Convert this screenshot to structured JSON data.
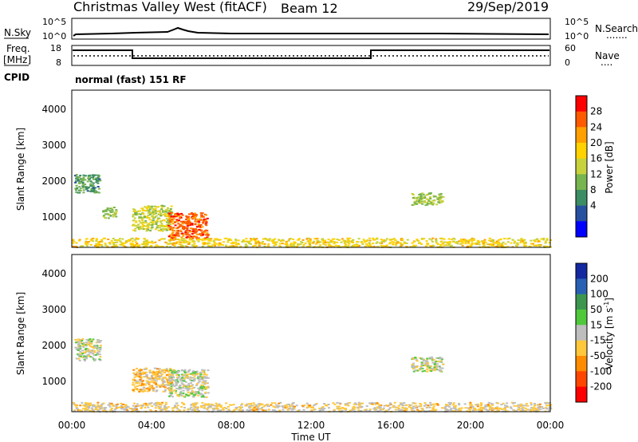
{
  "header": {
    "title": "Christmas Valley West (fitACF)",
    "beam": "Beam 12",
    "date": "29/Sep/2019"
  },
  "panels": {
    "nsky": {
      "label": "N.Sky",
      "ticks_left": [
        "10^5",
        "10^0"
      ],
      "ticks_right": [
        "10^5",
        "10^0"
      ],
      "right_label": "N.Search",
      "right_marker": "......."
    },
    "freq": {
      "label_line1": "Freq.",
      "label_line2": "[MHz]",
      "ticks_left": [
        "18",
        "8"
      ],
      "ticks_right": [
        "60",
        "0"
      ],
      "right_label": "Nave",
      "right_marker": "....",
      "cpid_label": "CPID",
      "cpid_text": "normal (fast) 151 RF"
    }
  },
  "colorbars": {
    "power": {
      "label": "Power [dB]",
      "ticks": [
        "28",
        "24",
        "20",
        "16",
        "12",
        "8",
        "4"
      ],
      "colors": [
        "#ff0000",
        "#ff5a00",
        "#ffa000",
        "#ffd200",
        "#c8d23c",
        "#78b450",
        "#3c8c64",
        "#2850a0",
        "#0000ff"
      ]
    },
    "velocity": {
      "label": "Velocity [m s",
      "label_sup": "-1",
      "label_end": "]",
      "ticks": [
        "200",
        "100",
        "50",
        "15",
        "-15",
        "-50",
        "-100",
        "-200"
      ],
      "colors": [
        "#1428a0",
        "#2860b4",
        "#3c9650",
        "#50c83c",
        "#bebebe",
        "#ffc83c",
        "#ff8c00",
        "#ff4600",
        "#ff0000"
      ]
    }
  },
  "axes": {
    "ylabel": "Slant Range [km]",
    "yticks": [
      "4000",
      "3000",
      "2000",
      "1000"
    ],
    "xticks": [
      "00:00",
      "04:00",
      "08:00",
      "12:00",
      "16:00",
      "20:00",
      "00:00"
    ],
    "xlabel": "Time UT"
  },
  "chart_data": [
    {
      "type": "heatmap",
      "name": "power",
      "x_unit": "hours UT",
      "y_unit": "km",
      "xlim": [
        0,
        24
      ],
      "ylim": [
        180,
        4500
      ],
      "clim": [
        0,
        30
      ],
      "regions": [
        {
          "x": [
            0.1,
            1.4
          ],
          "y": [
            1700,
            2200
          ],
          "v": 9
        },
        {
          "x": [
            1.5,
            2.2
          ],
          "y": [
            1000,
            1300
          ],
          "v": 13
        },
        {
          "x": [
            3.0,
            5.0
          ],
          "y": [
            650,
            1350
          ],
          "v": 15
        },
        {
          "x": [
            4.8,
            6.8
          ],
          "y": [
            450,
            1150
          ],
          "v": 26
        },
        {
          "x": [
            17.0,
            18.6
          ],
          "y": [
            1350,
            1700
          ],
          "v": 13
        },
        {
          "x": [
            0.0,
            24.0
          ],
          "y": [
            200,
            450
          ],
          "v": 18
        }
      ]
    },
    {
      "type": "heatmap",
      "name": "velocity",
      "x_unit": "hours UT",
      "y_unit": "km",
      "xlim": [
        0,
        24
      ],
      "ylim": [
        180,
        4500
      ],
      "clim": [
        -250,
        250
      ],
      "regions": [
        {
          "x": [
            0.1,
            1.4
          ],
          "y": [
            1600,
            2200
          ],
          "v": 0
        },
        {
          "x": [
            3.0,
            5.0
          ],
          "y": [
            750,
            1400
          ],
          "v": -60
        },
        {
          "x": [
            4.8,
            6.8
          ],
          "y": [
            600,
            1350
          ],
          "v": 0
        },
        {
          "x": [
            17.0,
            18.6
          ],
          "y": [
            1300,
            1700
          ],
          "v": 0
        },
        {
          "x": [
            0.0,
            24.0
          ],
          "y": [
            200,
            450
          ],
          "v": -40
        }
      ]
    }
  ]
}
